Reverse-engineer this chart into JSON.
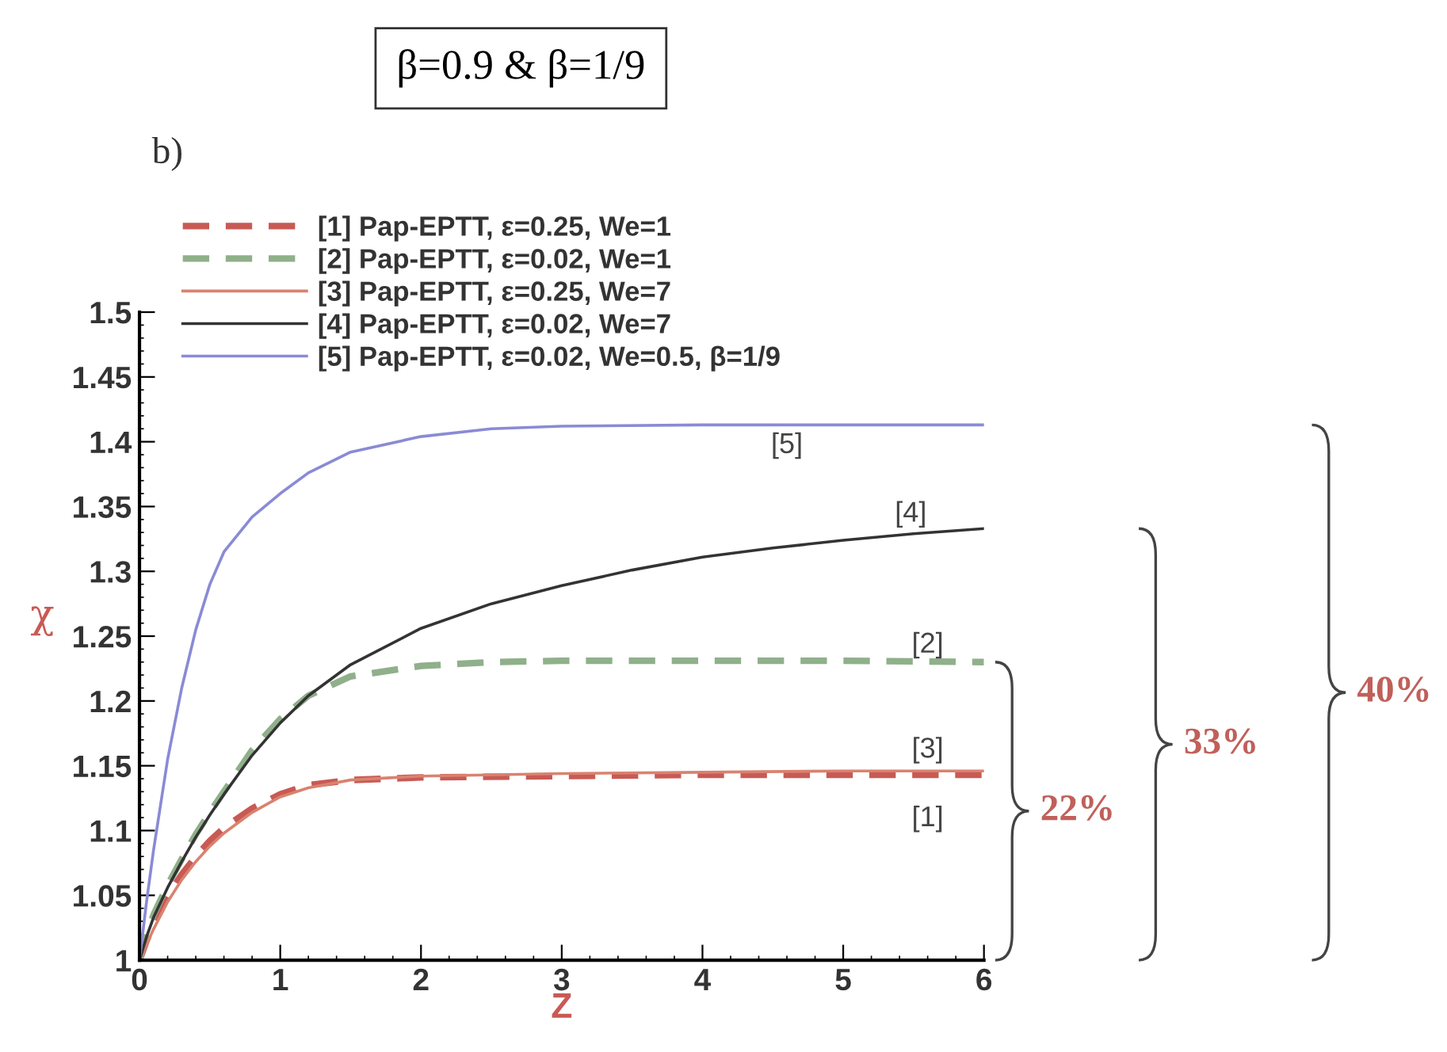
{
  "chart_data": {
    "type": "line",
    "title": "β=0.9 & β=1/9",
    "xlabel": "Z",
    "ylabel": "χ",
    "xlim": [
      0,
      6
    ],
    "xticks": [
      0,
      1,
      2,
      3,
      4,
      5,
      6
    ],
    "ylim": [
      1,
      1.5
    ],
    "yticks": [
      1,
      1.05,
      1.1,
      1.15,
      1.2,
      1.25,
      1.3,
      1.35,
      1.4,
      1.45,
      1.5
    ],
    "grid": false,
    "legend": "top left",
    "marker": "none",
    "series": [
      {
        "name": "[1] Pap-EPTT, ε=0.25, We=1",
        "color": "#c85a55",
        "line_style": "dashed",
        "x": [
          0,
          0.05,
          0.1,
          0.2,
          0.3,
          0.4,
          0.5,
          0.6,
          0.8,
          1.0,
          1.2,
          1.5,
          2,
          3,
          4,
          5,
          6
        ],
        "values": [
          1.0,
          1.015,
          1.028,
          1.05,
          1.066,
          1.08,
          1.092,
          1.102,
          1.117,
          1.128,
          1.135,
          1.139,
          1.141,
          1.142,
          1.143,
          1.143,
          1.143
        ]
      },
      {
        "name": "[2] Pap-EPTT, ε=0.02, We=1",
        "color": "#8fb08a",
        "line_style": "dashed",
        "x": [
          0,
          0.05,
          0.1,
          0.2,
          0.3,
          0.4,
          0.5,
          0.6,
          0.8,
          1.0,
          1.2,
          1.5,
          2,
          2.5,
          3,
          4,
          5,
          6
        ],
        "values": [
          1.0,
          1.02,
          1.035,
          1.058,
          1.078,
          1.097,
          1.114,
          1.13,
          1.162,
          1.186,
          1.204,
          1.219,
          1.227,
          1.23,
          1.231,
          1.231,
          1.231,
          1.23
        ]
      },
      {
        "name": "[3] Pap-EPTT, ε=0.25, We=7",
        "color": "#d9826f",
        "line_style": "solid",
        "x": [
          0,
          0.05,
          0.1,
          0.2,
          0.3,
          0.4,
          0.5,
          0.6,
          0.8,
          1.0,
          1.2,
          1.5,
          2,
          3,
          4,
          5,
          6
        ],
        "values": [
          1.0,
          1.012,
          1.024,
          1.045,
          1.062,
          1.076,
          1.088,
          1.098,
          1.114,
          1.126,
          1.133,
          1.139,
          1.142,
          1.144,
          1.145,
          1.146,
          1.146
        ]
      },
      {
        "name": "[4] Pap-EPTT, ε=0.02, We=7",
        "color": "#333333",
        "line_style": "solid",
        "x": [
          0,
          0.05,
          0.1,
          0.2,
          0.3,
          0.4,
          0.5,
          0.6,
          0.8,
          1.0,
          1.2,
          1.5,
          2,
          2.5,
          3,
          3.5,
          4,
          4.5,
          5,
          5.5,
          6
        ],
        "values": [
          1.0,
          1.018,
          1.033,
          1.056,
          1.076,
          1.095,
          1.112,
          1.128,
          1.158,
          1.183,
          1.204,
          1.228,
          1.256,
          1.275,
          1.289,
          1.301,
          1.311,
          1.318,
          1.324,
          1.329,
          1.333
        ]
      },
      {
        "name": "[5] Pap-EPTT, ε=0.02, We=0.5, β=1/9",
        "color": "#8a8ad6",
        "line_style": "solid",
        "x": [
          0,
          0.05,
          0.1,
          0.2,
          0.3,
          0.4,
          0.5,
          0.6,
          0.8,
          1.0,
          1.2,
          1.5,
          2,
          2.5,
          3,
          4,
          5,
          6
        ],
        "values": [
          1.0,
          1.045,
          1.085,
          1.155,
          1.21,
          1.255,
          1.29,
          1.315,
          1.342,
          1.36,
          1.376,
          1.392,
          1.404,
          1.41,
          1.412,
          1.413,
          1.413,
          1.413
        ]
      }
    ],
    "annotations": [
      "b)",
      "[1]",
      "[2]",
      "[3]",
      "[4]",
      "[5]",
      "22%",
      "33%",
      "40%"
    ]
  }
}
